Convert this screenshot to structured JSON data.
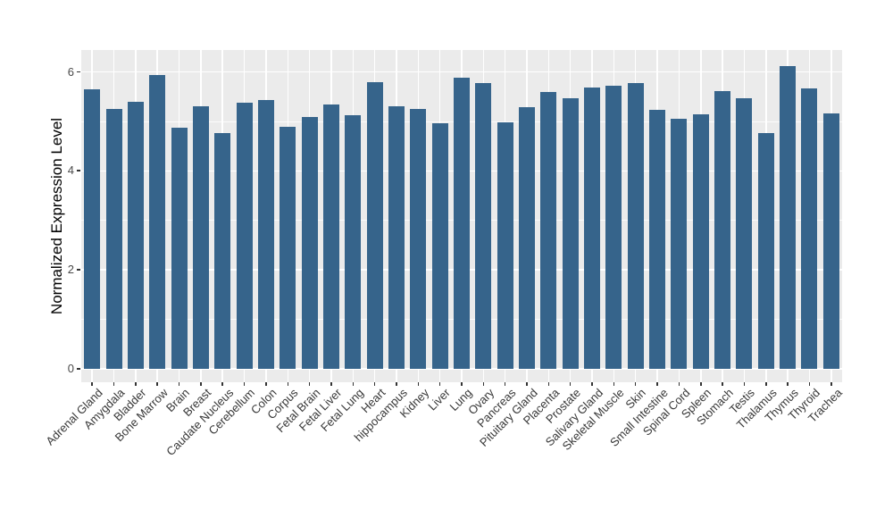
{
  "chart_data": {
    "type": "bar",
    "title": "",
    "xlabel": "",
    "ylabel": "Normalized Expression Level",
    "ylim": [
      0,
      6.5
    ],
    "yticks": [
      0,
      2,
      4,
      6
    ],
    "ytick_labels": [
      "0",
      "2",
      "4",
      "6"
    ],
    "yticks_minor": [
      1,
      3,
      5
    ],
    "grid": "on",
    "legend": "none",
    "categories": [
      "Adrenal Gland",
      "Amygdala",
      "Bladder",
      "Bone Marrow",
      "Brain",
      "Breast",
      "Caudate Nucleus",
      "Cerebellum",
      "Colon",
      "Corpus",
      "Fetal Brain",
      "Fetal Liver",
      "Fetal Lung",
      "Heart",
      "hippocampus",
      "Kidney",
      "Liver",
      "Lung",
      "Ovary",
      "Pancreas",
      "Pituitary Gland",
      "Placenta",
      "Prostate",
      "Salivary Gland",
      "Skeletal Muscle",
      "Skin",
      "Small Intestine",
      "Spinal Cord",
      "Spleen",
      "Stomach",
      "Testis",
      "Thalamus",
      "Thymus",
      "Thyroid",
      "Trachea"
    ],
    "values": [
      5.65,
      5.25,
      5.39,
      5.94,
      4.88,
      5.31,
      4.76,
      5.38,
      5.44,
      4.9,
      5.09,
      5.35,
      5.13,
      5.79,
      5.31,
      5.26,
      4.97,
      5.88,
      5.78,
      4.99,
      5.28,
      5.59,
      5.47,
      5.69,
      5.72,
      5.78,
      5.23,
      5.05,
      5.14,
      5.61,
      5.47,
      4.76,
      6.12,
      5.66,
      5.16
    ],
    "colors": {
      "bar_fill": "#36648B",
      "panel_background": "#EBEBEB",
      "grid_line": "#FFFFFF",
      "tick_mark": "#333333",
      "axis_text": "#383838",
      "axis_title": "#000000"
    }
  }
}
